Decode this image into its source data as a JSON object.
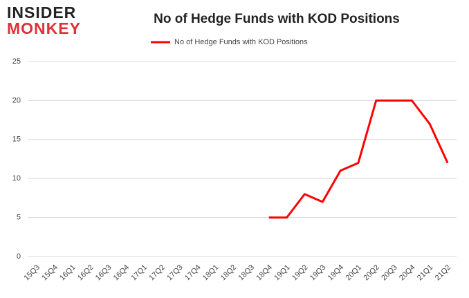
{
  "logo": {
    "top": "INSIDER",
    "bottom": "MONKEY"
  },
  "chart_data": {
    "type": "line",
    "title": "No of Hedge Funds with KOD Positions",
    "categories": [
      "15Q3",
      "15Q4",
      "16Q1",
      "16Q2",
      "16Q3",
      "16Q4",
      "17Q1",
      "17Q2",
      "17Q3",
      "17Q4",
      "18Q1",
      "18Q2",
      "18Q3",
      "18Q4",
      "19Q1",
      "19Q2",
      "19Q3",
      "19Q4",
      "20Q1",
      "20Q2",
      "20Q3",
      "20Q4",
      "21Q1",
      "21Q2"
    ],
    "series": [
      {
        "name": "No of Hedge Funds with KOD Positions",
        "color": "#ff0000",
        "values": [
          null,
          null,
          null,
          null,
          null,
          null,
          null,
          null,
          null,
          null,
          null,
          null,
          null,
          5,
          5,
          8,
          7,
          11,
          12,
          20,
          20,
          20,
          17,
          12
        ]
      }
    ],
    "ylim": [
      0,
      25
    ],
    "yticks": [
      0,
      5,
      10,
      15,
      20,
      25
    ],
    "grid": true,
    "legend": "top"
  }
}
